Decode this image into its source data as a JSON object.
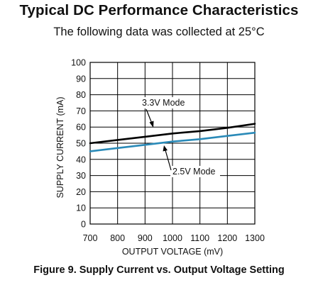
{
  "header": {
    "title": "Typical DC Performance Characteristics",
    "subtitle": "The following data was collected at 25°C"
  },
  "figure": {
    "caption": "Figure 9. Supply Current vs. Output Voltage Setting"
  },
  "colors": {
    "series_3v3": "#000000",
    "series_2v5": "#2a8ab8",
    "grid": "#000000"
  },
  "chart_data": {
    "type": "line",
    "xlabel": "OUTPUT VOLTAGE (mV)",
    "ylabel": "SUPPLY CURRENT (mA)",
    "xlim": [
      700,
      1300
    ],
    "ylim": [
      0,
      100
    ],
    "xticks": [
      700,
      800,
      900,
      1000,
      1100,
      1200,
      1300
    ],
    "yticks": [
      0,
      10,
      20,
      30,
      40,
      50,
      60,
      70,
      80,
      90,
      100
    ],
    "grid": true,
    "series": [
      {
        "name": "3.3V Mode",
        "x": [
          700,
          800,
          900,
          1000,
          1100,
          1200,
          1300
        ],
        "values": [
          50,
          52,
          54,
          56,
          57.5,
          59.5,
          62
        ]
      },
      {
        "name": "2.5V Mode",
        "x": [
          700,
          800,
          900,
          1000,
          1100,
          1200,
          1300
        ],
        "values": [
          45,
          47,
          49,
          51,
          52.5,
          54.5,
          56.5
        ]
      }
    ],
    "annotations": [
      {
        "text": "3.3V Mode",
        "series": "3.3V Mode",
        "x": 925,
        "y": 67.5,
        "arrow_to": [
          950,
          55
        ]
      },
      {
        "text": "2.5V Mode",
        "series": "2.5V Mode",
        "x": 1000,
        "y": 32.5,
        "arrow_to": [
          985,
          50.5
        ]
      }
    ]
  }
}
